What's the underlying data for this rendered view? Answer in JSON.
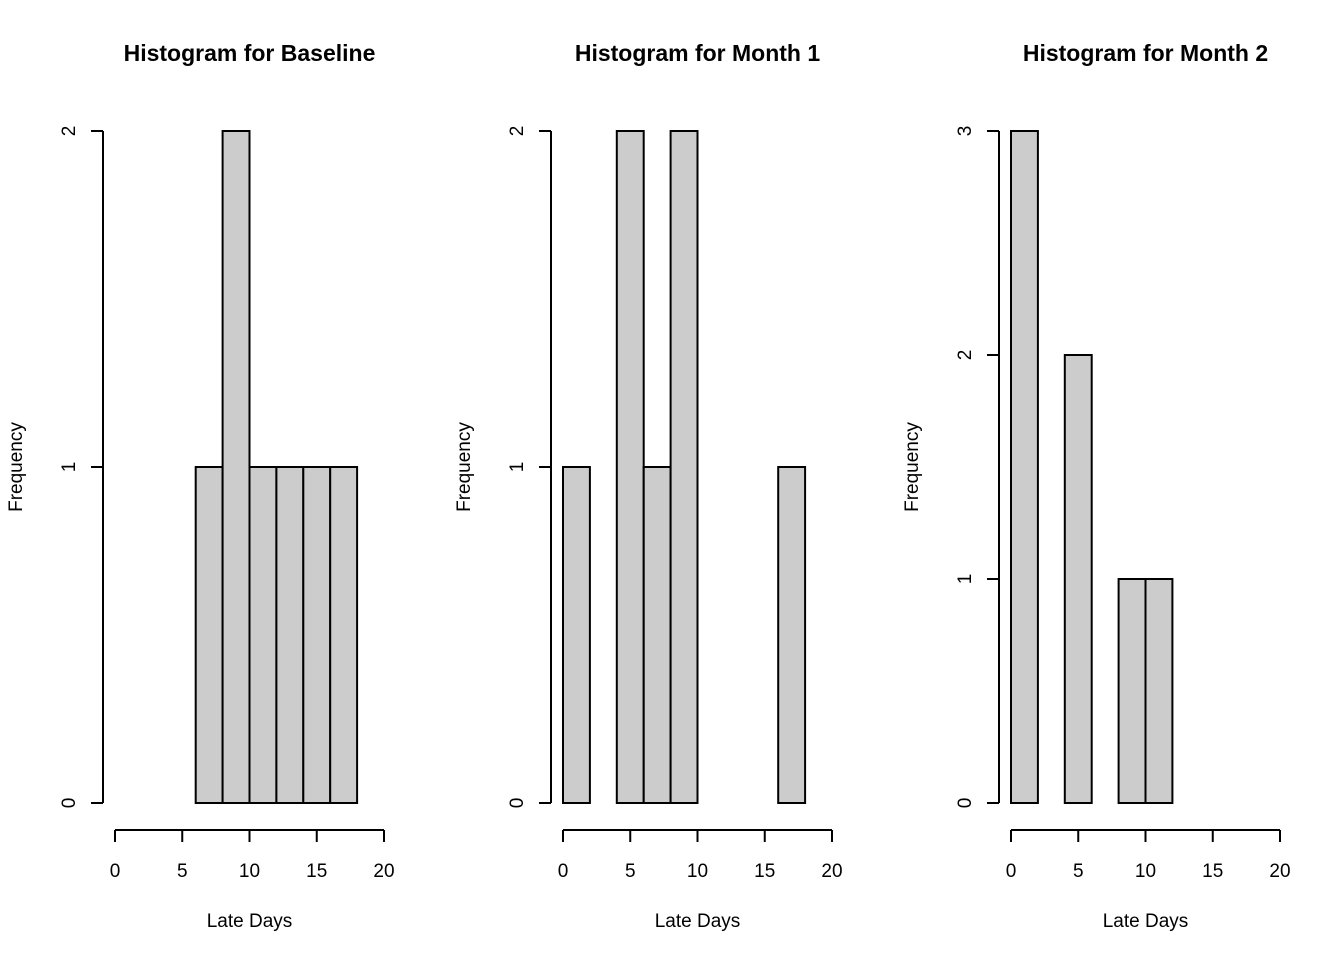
{
  "chart_data": [
    {
      "type": "bar",
      "title": "Histogram for Baseline",
      "xlabel": "Late Days",
      "ylabel": "Frequency",
      "bins": [
        [
          0,
          2
        ],
        [
          2,
          4
        ],
        [
          4,
          6
        ],
        [
          6,
          8
        ],
        [
          8,
          10
        ],
        [
          10,
          12
        ],
        [
          12,
          14
        ],
        [
          14,
          16
        ],
        [
          16,
          18
        ]
      ],
      "values": [
        0,
        0,
        0,
        1,
        2,
        1,
        1,
        1,
        1
      ],
      "xlim": [
        0,
        20
      ],
      "ylim": [
        0,
        2
      ],
      "xticks": [
        0,
        5,
        10,
        15,
        20
      ],
      "yticks": [
        0,
        1,
        2
      ],
      "grid": false
    },
    {
      "type": "bar",
      "title": "Histogram for Month 1",
      "xlabel": "Late Days",
      "ylabel": "Frequency",
      "bins": [
        [
          0,
          2
        ],
        [
          2,
          4
        ],
        [
          4,
          6
        ],
        [
          6,
          8
        ],
        [
          8,
          10
        ],
        [
          10,
          12
        ],
        [
          12,
          14
        ],
        [
          14,
          16
        ],
        [
          16,
          18
        ]
      ],
      "values": [
        1,
        0,
        2,
        1,
        2,
        0,
        0,
        0,
        1
      ],
      "xlim": [
        0,
        20
      ],
      "ylim": [
        0,
        2
      ],
      "xticks": [
        0,
        5,
        10,
        15,
        20
      ],
      "yticks": [
        0,
        1,
        2
      ],
      "grid": false
    },
    {
      "type": "bar",
      "title": "Histogram for Month 2",
      "xlabel": "Late Days",
      "ylabel": "Frequency",
      "bins": [
        [
          0,
          2
        ],
        [
          2,
          4
        ],
        [
          4,
          6
        ],
        [
          6,
          8
        ],
        [
          8,
          10
        ],
        [
          10,
          12
        ],
        [
          12,
          14
        ],
        [
          14,
          16
        ],
        [
          16,
          18
        ],
        [
          18,
          20
        ]
      ],
      "values": [
        3,
        0,
        2,
        0,
        1,
        1,
        0,
        0,
        0,
        0
      ],
      "xlim": [
        0,
        20
      ],
      "ylim": [
        0,
        3
      ],
      "xticks": [
        0,
        5,
        10,
        15,
        20
      ],
      "yticks": [
        0,
        1,
        2,
        3
      ],
      "grid": false
    }
  ]
}
